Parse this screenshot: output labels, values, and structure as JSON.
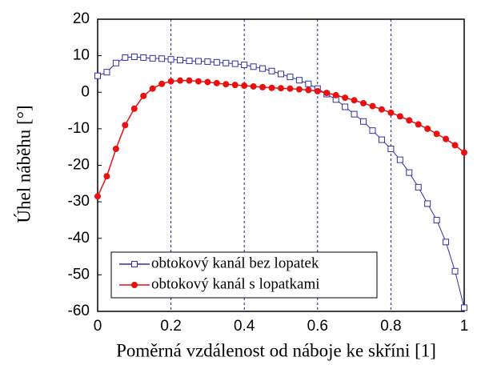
{
  "chart_data": {
    "type": "line",
    "x_label": "Poměrná vzdálenost od náboje ke skříni [1]",
    "y_label": "Úhel náběhu [°]",
    "x": [
      0,
      0.025,
      0.05,
      0.075,
      0.1,
      0.125,
      0.15,
      0.175,
      0.2,
      0.225,
      0.25,
      0.275,
      0.3,
      0.325,
      0.35,
      0.375,
      0.4,
      0.425,
      0.45,
      0.475,
      0.5,
      0.525,
      0.55,
      0.575,
      0.6,
      0.625,
      0.65,
      0.675,
      0.7,
      0.725,
      0.75,
      0.775,
      0.8,
      0.825,
      0.85,
      0.875,
      0.9,
      0.925,
      0.95,
      0.975,
      1
    ],
    "series": [
      {
        "name": "obtokový kanál bez lopatek",
        "color": "#3030a8",
        "marker": "open-square",
        "values": [
          4.5,
          5.5,
          8,
          9.5,
          9.7,
          9.5,
          9.3,
          9.2,
          9,
          8.8,
          8.6,
          8.5,
          8.4,
          8.2,
          8,
          7.8,
          7.5,
          7,
          6.5,
          5.8,
          5,
          4.2,
          3.3,
          2.3,
          1,
          -0.5,
          -2,
          -4,
          -6,
          -8,
          -10.5,
          -13,
          -15.5,
          -18.5,
          -22,
          -26,
          -30.5,
          -35,
          -41,
          -49,
          -59
        ]
      },
      {
        "name": "obtokový kanál s lopatkami",
        "color": "#e81010",
        "marker": "filled-circle",
        "values": [
          -28.5,
          -23,
          -15.5,
          -9,
          -4.5,
          -1,
          1,
          2.3,
          3,
          3.2,
          3.2,
          3,
          2.8,
          2.5,
          2.2,
          2,
          1.8,
          1.6,
          1.4,
          1.2,
          1.1,
          1,
          0.8,
          0.6,
          0.3,
          -0.2,
          -0.8,
          -1.5,
          -2.2,
          -3,
          -3.8,
          -4.7,
          -5.6,
          -6.6,
          -7.7,
          -8.8,
          -10,
          -11.4,
          -12.8,
          -14.5,
          -16.5
        ]
      }
    ],
    "xlim": [
      0,
      1
    ],
    "xticks": [
      0,
      0.2,
      0.4,
      0.6,
      0.8,
      1
    ],
    "ylim": [
      -60,
      20
    ],
    "yticks": [
      -60,
      -50,
      -40,
      -30,
      -20,
      -10,
      0,
      10,
      20
    ],
    "grid": true,
    "legend": "lower left"
  }
}
